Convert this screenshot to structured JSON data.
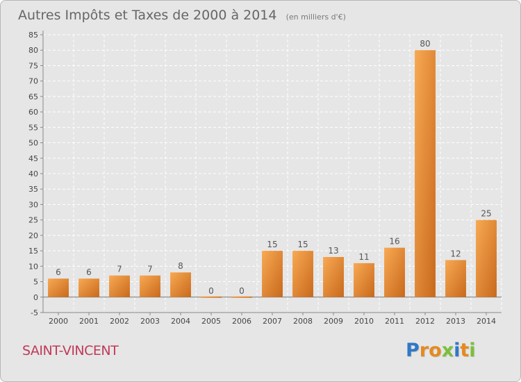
{
  "header": {
    "title": "Autres Impôts et Taxes de 2000 à 2014",
    "unit": "(en milliers d'€)"
  },
  "footer": {
    "commune": "SAINT-VINCENT",
    "logo_letters": [
      {
        "char": "P",
        "color": "#2f78c8"
      },
      {
        "char": "r",
        "color": "#e58a1f"
      },
      {
        "char": "o",
        "color": "#e58a1f"
      },
      {
        "char": "x",
        "color": "#7bbf3a"
      },
      {
        "char": "i",
        "color": "#2f78c8"
      },
      {
        "char": "t",
        "color": "#e58a1f"
      },
      {
        "char": "i",
        "color": "#7bbf3a"
      }
    ]
  },
  "colors": {
    "bar_light": "#f8a953",
    "bar_dark": "#c8691c",
    "grid": "#ffffff",
    "background": "#e6e6e6"
  },
  "chart_data": {
    "type": "bar",
    "title": "Autres Impôts et Taxes de 2000 à 2014",
    "subtitle": "(en milliers d'€)",
    "xlabel": "",
    "ylabel": "",
    "categories": [
      "2000",
      "2001",
      "2002",
      "2003",
      "2004",
      "2005",
      "2006",
      "2007",
      "2008",
      "2009",
      "2010",
      "2011",
      "2012",
      "2013",
      "2014"
    ],
    "values": [
      6,
      6,
      7,
      7,
      8,
      0,
      0,
      15,
      15,
      13,
      11,
      16,
      80,
      12,
      25
    ],
    "ylim": [
      -5,
      85
    ],
    "yticks": [
      -5,
      0,
      5,
      10,
      15,
      20,
      25,
      30,
      35,
      40,
      45,
      50,
      55,
      60,
      65,
      70,
      75,
      80,
      85
    ],
    "grid": true,
    "legend": "none"
  }
}
